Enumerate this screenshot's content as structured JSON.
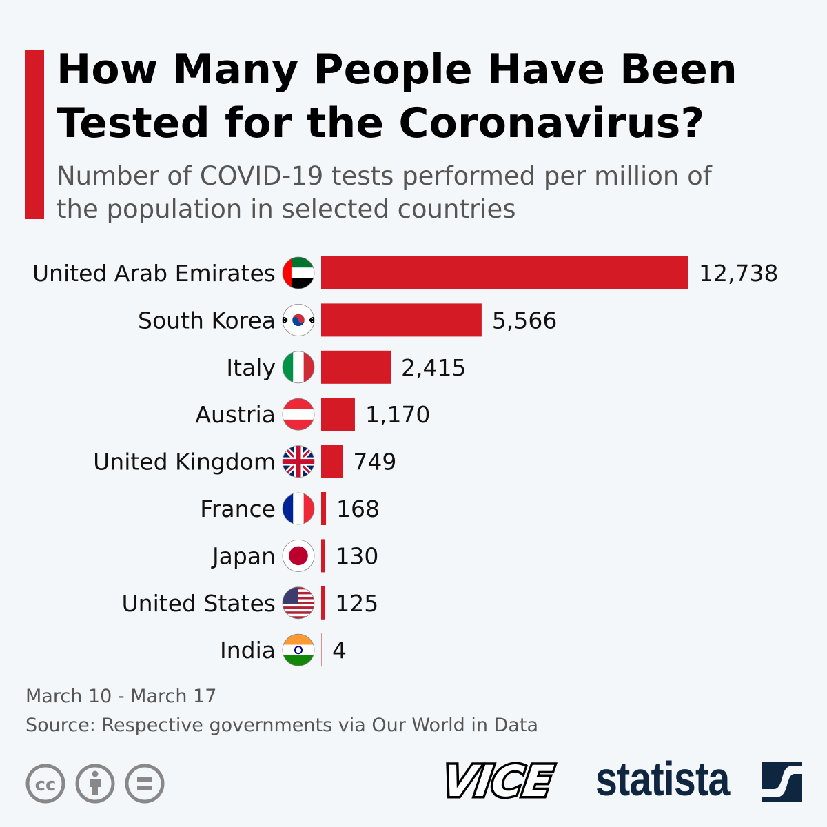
{
  "title": "How Many People Have Been Tested for the Coronavirus?",
  "subtitle": "Number of COVID-19 tests performed per million of the population in selected countries",
  "chart_data": {
    "type": "bar",
    "orientation": "horizontal",
    "categories": [
      "United Arab Emirates",
      "South Korea",
      "Italy",
      "Austria",
      "United Kingdom",
      "France",
      "Japan",
      "United States",
      "India"
    ],
    "values": [
      12738,
      5566,
      2415,
      1170,
      749,
      168,
      130,
      125,
      4
    ],
    "value_labels": [
      "12,738",
      "5,566",
      "2,415",
      "1,170",
      "749",
      "168",
      "130",
      "125",
      "4"
    ],
    "flags": [
      "uae-flag-icon",
      "south-korea-flag-icon",
      "italy-flag-icon",
      "austria-flag-icon",
      "uk-flag-icon",
      "france-flag-icon",
      "japan-flag-icon",
      "usa-flag-icon",
      "india-flag-icon"
    ],
    "bar_color": "#d41a25",
    "grid": false,
    "xlim": [
      0,
      12738
    ]
  },
  "footer": {
    "period": "March 10 - March 17",
    "source": "Source: Respective governments via Our World in Data"
  },
  "logos": {
    "vice": "VICE",
    "statista": "statista"
  },
  "colors": {
    "accent": "#d41a25",
    "statista_navy": "#0f2640",
    "icon_gray": "#888888"
  }
}
